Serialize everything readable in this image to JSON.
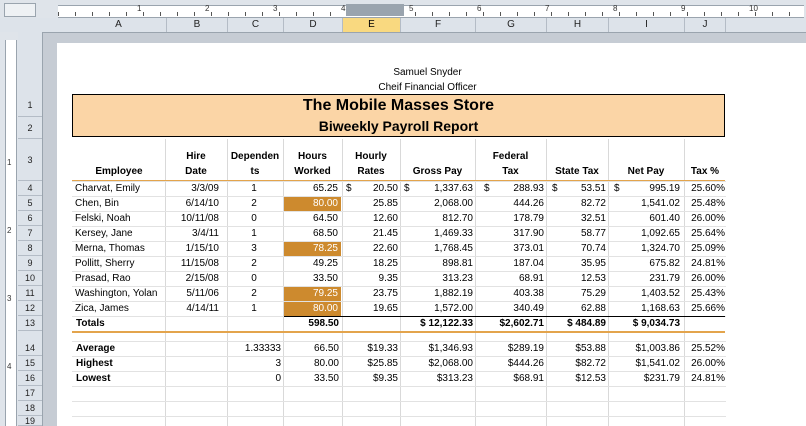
{
  "ruler": {
    "numbers": [
      "1",
      "2",
      "3",
      "4",
      "5",
      "6",
      "7",
      "8",
      "9",
      "10"
    ],
    "left_numbers": [
      "1",
      "2",
      "3",
      "4"
    ]
  },
  "columns": [
    "A",
    "B",
    "C",
    "D",
    "E",
    "F",
    "G",
    "H",
    "I",
    "J"
  ],
  "rows": [
    "1",
    "2",
    "3",
    "4",
    "5",
    "6",
    "7",
    "8",
    "9",
    "10",
    "11",
    "12",
    "13",
    "14",
    "15",
    "16",
    "17",
    "18",
    "19"
  ],
  "page_header": {
    "name": "Samuel Snyder",
    "title": "Cheif Financial Officer"
  },
  "report": {
    "title": "The Mobile Masses Store",
    "subtitle": "Biweekly Payroll Report"
  },
  "table_headers": {
    "employee": "Employee",
    "hire_date": [
      "Hire",
      "Date"
    ],
    "dependents": [
      "Dependen",
      "ts"
    ],
    "hours_worked": [
      "Hours",
      "Worked"
    ],
    "hourly_rates": [
      "Hourly",
      "Rates"
    ],
    "gross_pay": "Gross Pay",
    "federal_tax": [
      "Federal",
      "Tax"
    ],
    "state_tax": "State Tax",
    "net_pay": "Net Pay",
    "tax_pct": "Tax %"
  },
  "employees": [
    {
      "name": "Charvat, Emily",
      "hire": "3/3/09",
      "dep": "1",
      "hours": "65.25",
      "rate": "20.50",
      "rate_sym": "$",
      "gross": "1,337.63",
      "gross_sym": "$",
      "fed": "288.93",
      "fed_sym": "$",
      "state": "53.51",
      "state_sym": "$",
      "net": "995.19",
      "net_sym": "$",
      "pct": "25.60%",
      "highlight": false
    },
    {
      "name": "Chen, Bin",
      "hire": "6/14/10",
      "dep": "2",
      "hours": "80.00",
      "rate": "25.85",
      "gross": "2,068.00",
      "fed": "444.26",
      "state": "82.72",
      "net": "1,541.02",
      "pct": "25.48%",
      "highlight": true
    },
    {
      "name": "Felski, Noah",
      "hire": "10/11/08",
      "dep": "0",
      "hours": "64.50",
      "rate": "12.60",
      "gross": "812.70",
      "fed": "178.79",
      "state": "32.51",
      "net": "601.40",
      "pct": "26.00%",
      "highlight": false
    },
    {
      "name": "Kersey, Jane",
      "hire": "3/4/11",
      "dep": "1",
      "hours": "68.50",
      "rate": "21.45",
      "gross": "1,469.33",
      "fed": "317.90",
      "state": "58.77",
      "net": "1,092.65",
      "pct": "25.64%",
      "highlight": false
    },
    {
      "name": "Merna, Thomas",
      "hire": "1/15/10",
      "dep": "3",
      "hours": "78.25",
      "rate": "22.60",
      "gross": "1,768.45",
      "fed": "373.01",
      "state": "70.74",
      "net": "1,324.70",
      "pct": "25.09%",
      "highlight": true
    },
    {
      "name": "Pollitt, Sherry",
      "hire": "11/15/08",
      "dep": "2",
      "hours": "49.25",
      "rate": "18.25",
      "gross": "898.81",
      "fed": "187.04",
      "state": "35.95",
      "net": "675.82",
      "pct": "24.81%",
      "highlight": false
    },
    {
      "name": "Prasad, Rao",
      "hire": "2/15/08",
      "dep": "0",
      "hours": "33.50",
      "rate": "9.35",
      "gross": "313.23",
      "fed": "68.91",
      "state": "12.53",
      "net": "231.79",
      "pct": "26.00%",
      "highlight": false
    },
    {
      "name": "Washington, Yolan",
      "hire": "5/11/06",
      "dep": "2",
      "hours": "79.25",
      "rate": "23.75",
      "gross": "1,882.19",
      "fed": "403.38",
      "state": "75.29",
      "net": "1,403.52",
      "pct": "25.43%",
      "highlight": true
    },
    {
      "name": "Zica, James",
      "hire": "4/14/11",
      "dep": "1",
      "hours": "80.00",
      "rate": "19.65",
      "gross": "1,572.00",
      "fed": "340.49",
      "state": "62.88",
      "net": "1,168.63",
      "pct": "25.66%",
      "highlight": true
    }
  ],
  "totals": {
    "label": "Totals",
    "hours": "598.50",
    "gross": "$ 12,122.33",
    "fed": "$2,602.71",
    "state": "$ 484.89",
    "net": "$ 9,034.73"
  },
  "stats": [
    {
      "label": "Average",
      "dep": "1.33333",
      "hours": "66.50",
      "rate": "$19.33",
      "gross": "$1,346.93",
      "fed": "$289.19",
      "state": "$53.88",
      "net": "$1,003.86",
      "pct": "25.52%"
    },
    {
      "label": "Highest",
      "dep": "3",
      "hours": "80.00",
      "rate": "$25.85",
      "gross": "$2,068.00",
      "fed": "$444.26",
      "state": "$82.72",
      "net": "$1,541.02",
      "pct": "26.00%"
    },
    {
      "label": "Lowest",
      "dep": "0",
      "hours": "33.50",
      "rate": "$9.35",
      "gross": "$313.23",
      "fed": "$68.91",
      "state": "$12.53",
      "net": "$231.79",
      "pct": "24.81%"
    }
  ],
  "colors": {
    "title_fill": "#fbd5a6",
    "highlight": "#cd8a2e",
    "selected_column": "#f9d980",
    "border_accent": "#e3a44c"
  }
}
